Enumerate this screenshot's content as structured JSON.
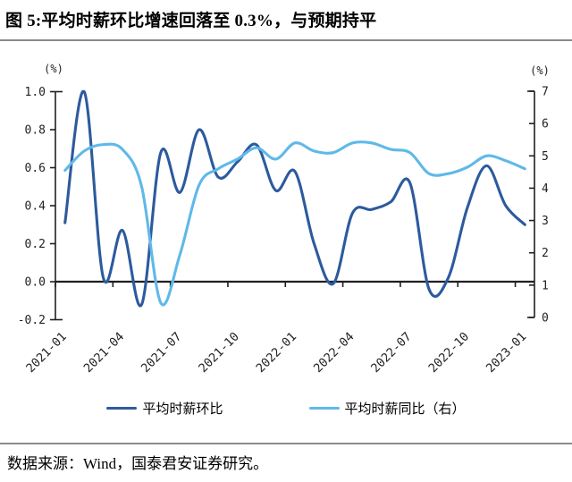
{
  "title": "图 5:平均时薪环比增速回落至 0.3%，与预期持平",
  "footer": {
    "text": "数据来源：Wind，国泰君安证券研究。"
  },
  "colors": {
    "mom_line": "#2d5a9e",
    "yoy_line": "#5fb9e8",
    "axis": "#1f1f1f",
    "divider": "#8a8a8a"
  },
  "chart_data": {
    "type": "line",
    "x": [
      "2021-01",
      "2021-02",
      "2021-03",
      "2021-04",
      "2021-05",
      "2021-06",
      "2021-07",
      "2021-08",
      "2021-09",
      "2021-10",
      "2021-11",
      "2021-12",
      "2022-01",
      "2022-02",
      "2022-03",
      "2022-04",
      "2022-05",
      "2022-06",
      "2022-07",
      "2022-08",
      "2022-09",
      "2022-10",
      "2022-11",
      "2022-12",
      "2023-01"
    ],
    "x_tick_labels": [
      "2021-01",
      "2021-04",
      "2021-07",
      "2021-10",
      "2022-01",
      "2022-04",
      "2022-07",
      "2022-10",
      "2023-01"
    ],
    "series": [
      {
        "name": "平均时薪环比",
        "axis": "left",
        "color": "#2d5a9e",
        "values": [
          0.31,
          1.0,
          0.02,
          0.27,
          -0.12,
          0.68,
          0.47,
          0.8,
          0.55,
          0.63,
          0.72,
          0.48,
          0.58,
          0.2,
          -0.01,
          0.36,
          0.38,
          0.42,
          0.52,
          -0.04,
          0.02,
          0.39,
          0.61,
          0.4,
          0.3
        ]
      },
      {
        "name": "平均时薪同比（右）",
        "axis": "right",
        "color": "#5fb9e8",
        "values": [
          4.55,
          5.15,
          5.35,
          5.2,
          4.05,
          0.45,
          1.95,
          4.1,
          4.6,
          4.9,
          5.25,
          4.9,
          5.4,
          5.15,
          5.1,
          5.4,
          5.4,
          5.2,
          5.1,
          4.45,
          4.45,
          4.65,
          5.0,
          4.85,
          4.6
        ]
      }
    ],
    "left_axis": {
      "label": "(%)",
      "min": -0.2,
      "max": 1.0,
      "tick_labels": [
        "1.0",
        "0.8",
        "0.6",
        "0.4",
        "0.2",
        "0.0",
        "-0.2"
      ]
    },
    "right_axis": {
      "label": "(%)",
      "min": 0,
      "max": 7,
      "tick_labels": [
        "7",
        "6",
        "5",
        "4",
        "3",
        "2",
        "1",
        "0"
      ]
    },
    "grid": false,
    "legend_position": "bottom",
    "zero_baseline": true
  }
}
